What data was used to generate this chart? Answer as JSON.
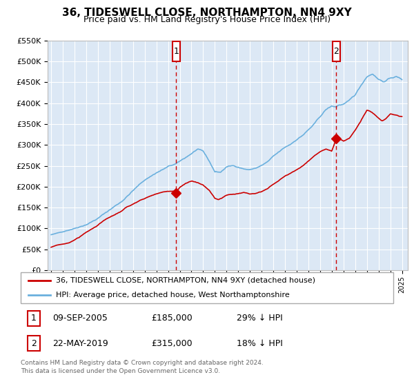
{
  "title": "36, TIDESWELL CLOSE, NORTHAMPTON, NN4 9XY",
  "subtitle": "Price paid vs. HM Land Registry's House Price Index (HPI)",
  "legend_line1": "36, TIDESWELL CLOSE, NORTHAMPTON, NN4 9XY (detached house)",
  "legend_line2": "HPI: Average price, detached house, West Northamptonshire",
  "footnote": "Contains HM Land Registry data © Crown copyright and database right 2024.\nThis data is licensed under the Open Government Licence v3.0.",
  "transaction1": {
    "label": "1",
    "date": "09-SEP-2005",
    "price": "£185,000",
    "hpi_diff": "29% ↓ HPI",
    "x_year": 2005.69,
    "y_val": 185000
  },
  "transaction2": {
    "label": "2",
    "date": "22-MAY-2019",
    "price": "£315,000",
    "hpi_diff": "18% ↓ HPI",
    "x_year": 2019.39,
    "y_val": 315000
  },
  "hpi_color": "#6ab0de",
  "price_color": "#cc0000",
  "bg_color": "#dce8f5",
  "grid_color": "#ffffff",
  "outer_bg": "#f0f0f0",
  "ylim": [
    0,
    550000
  ],
  "xlim_start": 1994.7,
  "xlim_end": 2025.5,
  "hpi_waypoints": [
    [
      1995.0,
      85000
    ],
    [
      1996.0,
      92000
    ],
    [
      1997.0,
      102000
    ],
    [
      1998.0,
      113000
    ],
    [
      1999.0,
      128000
    ],
    [
      2000.0,
      148000
    ],
    [
      2001.0,
      168000
    ],
    [
      2002.0,
      195000
    ],
    [
      2003.0,
      220000
    ],
    [
      2004.0,
      238000
    ],
    [
      2005.0,
      252000
    ],
    [
      2005.7,
      258000
    ],
    [
      2006.0,
      263000
    ],
    [
      2006.5,
      272000
    ],
    [
      2007.0,
      282000
    ],
    [
      2007.5,
      292000
    ],
    [
      2008.0,
      285000
    ],
    [
      2008.5,
      262000
    ],
    [
      2009.0,
      236000
    ],
    [
      2009.5,
      235000
    ],
    [
      2010.0,
      248000
    ],
    [
      2010.5,
      250000
    ],
    [
      2011.0,
      248000
    ],
    [
      2011.5,
      244000
    ],
    [
      2012.0,
      242000
    ],
    [
      2012.5,
      246000
    ],
    [
      2013.0,
      252000
    ],
    [
      2013.5,
      260000
    ],
    [
      2014.0,
      272000
    ],
    [
      2014.5,
      282000
    ],
    [
      2015.0,
      292000
    ],
    [
      2015.5,
      300000
    ],
    [
      2016.0,
      312000
    ],
    [
      2016.5,
      322000
    ],
    [
      2017.0,
      335000
    ],
    [
      2017.5,
      348000
    ],
    [
      2018.0,
      365000
    ],
    [
      2018.5,
      382000
    ],
    [
      2019.0,
      390000
    ],
    [
      2019.4,
      388000
    ],
    [
      2019.5,
      392000
    ],
    [
      2020.0,
      395000
    ],
    [
      2020.5,
      402000
    ],
    [
      2021.0,
      415000
    ],
    [
      2021.5,
      438000
    ],
    [
      2022.0,
      460000
    ],
    [
      2022.5,
      468000
    ],
    [
      2023.0,
      455000
    ],
    [
      2023.5,
      450000
    ],
    [
      2024.0,
      458000
    ],
    [
      2024.5,
      462000
    ],
    [
      2025.0,
      455000
    ]
  ],
  "red_waypoints": [
    [
      1995.0,
      55000
    ],
    [
      1995.5,
      60000
    ],
    [
      1996.0,
      62000
    ],
    [
      1996.5,
      65000
    ],
    [
      1997.0,
      72000
    ],
    [
      1997.5,
      80000
    ],
    [
      1998.0,
      90000
    ],
    [
      1998.5,
      98000
    ],
    [
      1999.0,
      108000
    ],
    [
      1999.5,
      118000
    ],
    [
      2000.0,
      125000
    ],
    [
      2000.5,
      132000
    ],
    [
      2001.0,
      138000
    ],
    [
      2001.5,
      148000
    ],
    [
      2002.0,
      155000
    ],
    [
      2002.5,
      162000
    ],
    [
      2003.0,
      168000
    ],
    [
      2003.5,
      175000
    ],
    [
      2004.0,
      180000
    ],
    [
      2004.5,
      183000
    ],
    [
      2005.0,
      185000
    ],
    [
      2005.69,
      185000
    ],
    [
      2005.8,
      188000
    ],
    [
      2006.0,
      195000
    ],
    [
      2006.5,
      205000
    ],
    [
      2007.0,
      210000
    ],
    [
      2007.3,
      208000
    ],
    [
      2007.6,
      205000
    ],
    [
      2008.0,
      200000
    ],
    [
      2008.5,
      188000
    ],
    [
      2009.0,
      168000
    ],
    [
      2009.3,
      165000
    ],
    [
      2009.6,
      168000
    ],
    [
      2010.0,
      175000
    ],
    [
      2010.5,
      178000
    ],
    [
      2011.0,
      180000
    ],
    [
      2011.5,
      182000
    ],
    [
      2012.0,
      180000
    ],
    [
      2012.5,
      183000
    ],
    [
      2013.0,
      188000
    ],
    [
      2013.5,
      195000
    ],
    [
      2014.0,
      205000
    ],
    [
      2014.5,
      215000
    ],
    [
      2015.0,
      225000
    ],
    [
      2015.5,
      232000
    ],
    [
      2016.0,
      240000
    ],
    [
      2016.5,
      250000
    ],
    [
      2017.0,
      262000
    ],
    [
      2017.5,
      275000
    ],
    [
      2018.0,
      285000
    ],
    [
      2018.5,
      290000
    ],
    [
      2019.0,
      285000
    ],
    [
      2019.39,
      315000
    ],
    [
      2019.5,
      318000
    ],
    [
      2019.8,
      312000
    ],
    [
      2020.0,
      308000
    ],
    [
      2020.5,
      315000
    ],
    [
      2021.0,
      335000
    ],
    [
      2021.5,
      358000
    ],
    [
      2022.0,
      382000
    ],
    [
      2022.3,
      378000
    ],
    [
      2022.6,
      372000
    ],
    [
      2023.0,
      362000
    ],
    [
      2023.3,
      355000
    ],
    [
      2023.6,
      360000
    ],
    [
      2024.0,
      372000
    ],
    [
      2024.5,
      368000
    ],
    [
      2025.0,
      365000
    ]
  ]
}
